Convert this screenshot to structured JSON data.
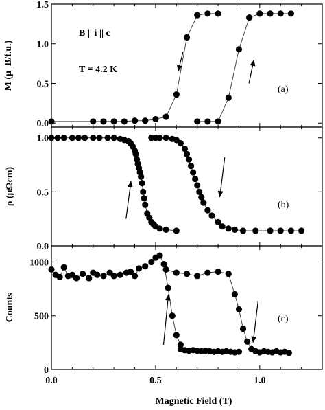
{
  "chart_data": [
    {
      "type": "scatter",
      "panel_label": "(a)",
      "ylabel": "M (μ_B/f.u.)",
      "xlim": [
        0,
        1.3
      ],
      "ylim": [
        -0.05,
        1.5
      ],
      "yticks": [
        0.0,
        0.5,
        1.0,
        1.5
      ],
      "annotations": [
        "B || i || c",
        "T = 4.2 K"
      ],
      "series": [
        {
          "x": [
            0.0,
            0.2,
            0.25,
            0.3,
            0.35,
            0.4,
            0.45,
            0.5,
            0.55,
            0.6,
            0.65,
            0.7,
            0.75,
            0.8
          ],
          "y": [
            0.02,
            0.02,
            0.02,
            0.02,
            0.02,
            0.03,
            0.03,
            0.05,
            0.08,
            0.36,
            1.08,
            1.36,
            1.38,
            1.38
          ]
        },
        {
          "x": [
            0.7,
            0.75,
            0.8,
            0.85,
            0.9,
            0.95,
            1.0,
            1.05,
            1.1,
            1.15
          ],
          "y": [
            0.02,
            0.02,
            0.02,
            0.32,
            0.93,
            1.33,
            1.38,
            1.38,
            1.38,
            1.38
          ]
        }
      ],
      "arrows": [
        {
          "x": 0.62,
          "y_from": 0.9,
          "y_to": 0.65
        },
        {
          "x": 0.96,
          "y_from": 0.5,
          "y_to": 0.8
        }
      ]
    },
    {
      "type": "scatter",
      "panel_label": "(b)",
      "ylabel": "ρ (μΩcm)",
      "xlim": [
        0,
        1.3
      ],
      "ylim": [
        0,
        1.1
      ],
      "yticks": [
        0.0,
        0.5,
        1.0
      ],
      "series": [
        {
          "x": [
            0.0,
            0.03,
            0.06,
            0.1,
            0.13,
            0.16,
            0.2,
            0.23,
            0.27,
            0.3,
            0.33,
            0.35,
            0.37,
            0.38,
            0.39,
            0.4,
            0.405,
            0.41,
            0.415,
            0.42,
            0.425,
            0.43,
            0.435,
            0.44,
            0.445,
            0.45,
            0.46,
            0.47,
            0.48,
            0.49,
            0.5,
            0.52,
            0.55,
            0.6
          ],
          "y": [
            1.0,
            1.0,
            1.0,
            1.0,
            1.0,
            1.0,
            1.0,
            1.0,
            1.0,
            1.0,
            0.99,
            0.98,
            0.97,
            0.95,
            0.92,
            0.88,
            0.85,
            0.8,
            0.76,
            0.72,
            0.68,
            0.64,
            0.58,
            0.5,
            0.44,
            0.38,
            0.3,
            0.26,
            0.22,
            0.2,
            0.18,
            0.16,
            0.15,
            0.14
          ]
        },
        {
          "x": [
            0.48,
            0.5,
            0.52,
            0.55,
            0.58,
            0.6,
            0.62,
            0.64,
            0.65,
            0.66,
            0.67,
            0.68,
            0.69,
            0.7,
            0.71,
            0.72,
            0.73,
            0.75,
            0.77,
            0.8,
            0.82,
            0.85,
            0.88,
            0.92,
            0.98,
            1.05,
            1.1,
            1.15,
            1.2
          ],
          "y": [
            1.0,
            1.0,
            1.0,
            1.0,
            0.99,
            0.98,
            0.95,
            0.9,
            0.85,
            0.8,
            0.74,
            0.68,
            0.62,
            0.56,
            0.5,
            0.45,
            0.4,
            0.33,
            0.28,
            0.22,
            0.18,
            0.16,
            0.15,
            0.14,
            0.14,
            0.14,
            0.14,
            0.14,
            0.14
          ]
        }
      ],
      "arrows": [
        {
          "x": 0.37,
          "y_from": 0.25,
          "y_to": 0.6
        },
        {
          "x": 0.82,
          "y_from": 0.82,
          "y_to": 0.45
        }
      ]
    },
    {
      "type": "scatter",
      "panel_label": "(c)",
      "ylabel": "Counts",
      "xlabel": "Magnetic Field (T)",
      "xlim": [
        0,
        1.3
      ],
      "ylim": [
        0,
        1150
      ],
      "yticks": [
        0,
        500,
        1000
      ],
      "xticks": [
        0.0,
        0.5,
        1.0
      ],
      "series": [
        {
          "x": [
            0.0,
            0.02,
            0.04,
            0.06,
            0.08,
            0.1,
            0.12,
            0.15,
            0.18,
            0.2,
            0.22,
            0.25,
            0.28,
            0.3,
            0.33,
            0.36,
            0.38,
            0.4,
            0.42,
            0.45,
            0.48,
            0.5,
            0.52,
            0.54,
            0.56,
            0.58,
            0.6,
            0.62
          ],
          "y": [
            930,
            880,
            860,
            950,
            870,
            880,
            850,
            890,
            850,
            900,
            880,
            870,
            900,
            870,
            880,
            900,
            910,
            870,
            940,
            960,
            1000,
            1040,
            1060,
            980,
            760,
            500,
            320,
            230
          ]
        },
        {
          "x": [
            0.55,
            0.6,
            0.65,
            0.7,
            0.75,
            0.8,
            0.85,
            0.88,
            0.9,
            0.92,
            0.94,
            0.96,
            0.98,
            1.0,
            1.02,
            1.04,
            1.06,
            1.08,
            1.1,
            1.12,
            1.14
          ],
          "y": [
            930,
            900,
            890,
            870,
            900,
            910,
            890,
            700,
            560,
            380,
            260,
            190,
            170,
            160,
            170,
            165,
            160,
            170,
            160,
            165,
            155
          ]
        },
        {
          "x": [
            0.62,
            0.64,
            0.66,
            0.68,
            0.7,
            0.72,
            0.74,
            0.76,
            0.78,
            0.8,
            0.82,
            0.84,
            0.86,
            0.88,
            0.9
          ],
          "y": [
            190,
            180,
            175,
            180,
            175,
            170,
            175,
            170,
            165,
            170,
            165,
            170,
            165,
            160,
            165
          ]
        }
      ],
      "arrows": [
        {
          "x": 0.55,
          "y_from": 230,
          "y_to": 700
        },
        {
          "x": 0.98,
          "y_from": 640,
          "y_to": 250
        }
      ]
    }
  ]
}
